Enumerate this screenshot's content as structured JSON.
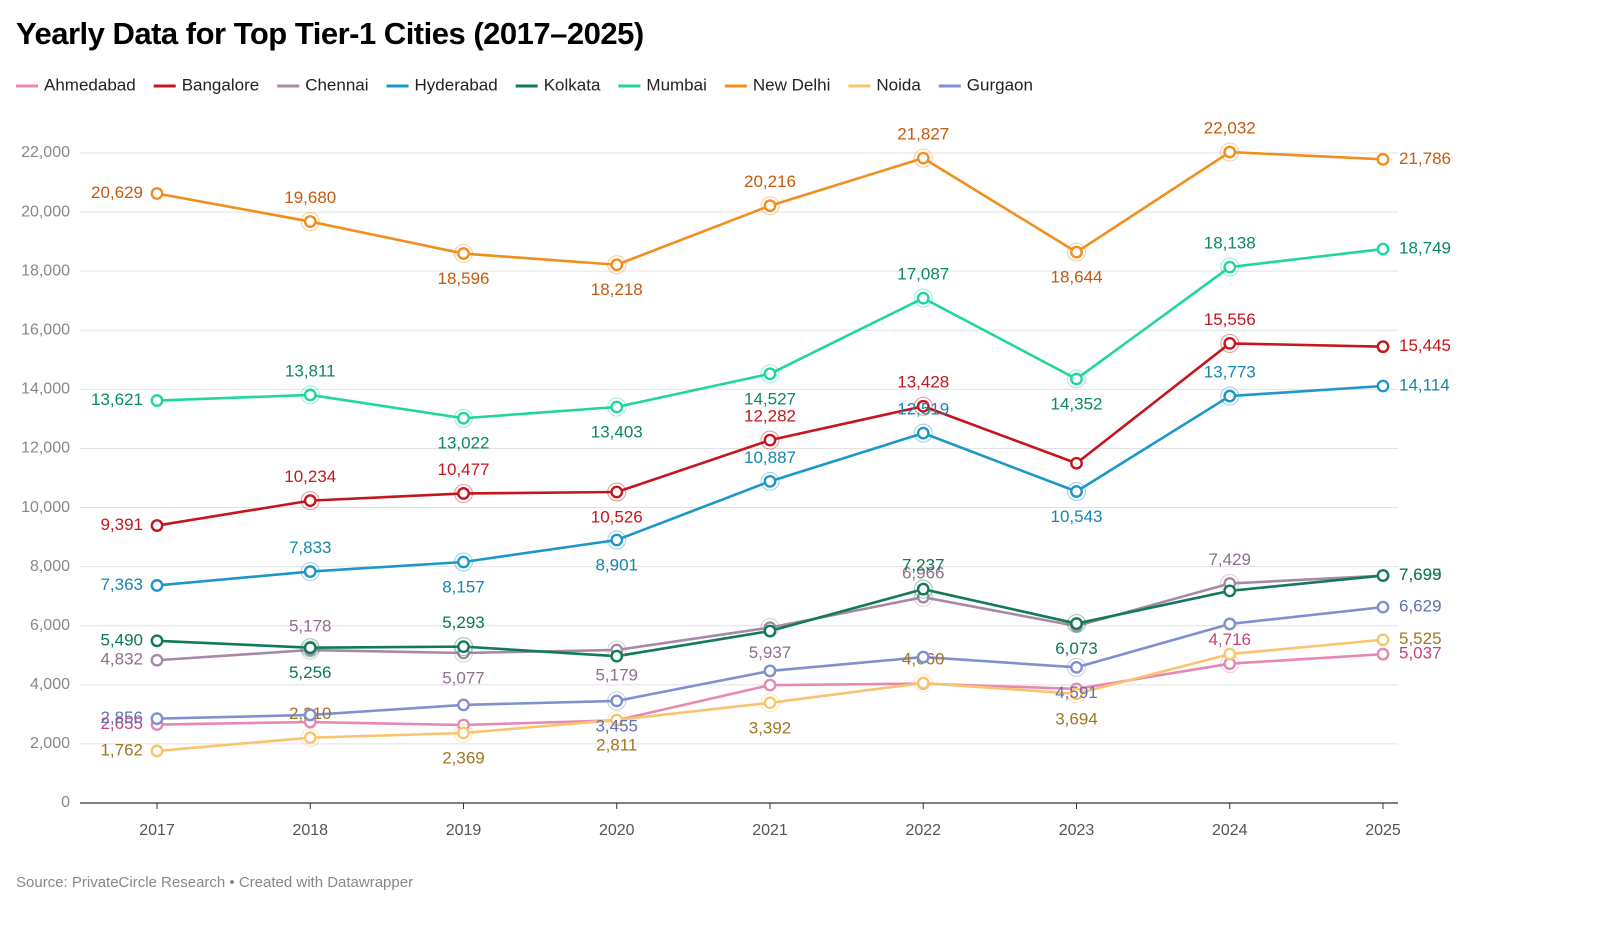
{
  "chart_data": {
    "type": "line",
    "title": "Yearly Data for Top Tier-1 Cities (2017–2025)",
    "source": "Source: PrivateCircle Research • Created with Datawrapper",
    "categories": [
      "2017",
      "2018",
      "2019",
      "2020",
      "2021",
      "2022",
      "2023",
      "2024",
      "2025"
    ],
    "ylim": [
      0,
      22000
    ],
    "yticks": [
      0,
      {
        "value": 2000,
        "label": "2,000"
      },
      {
        "value": 4000,
        "label": "4,000"
      },
      {
        "value": 6000,
        "label": "6,000"
      },
      {
        "value": 8000,
        "label": "8,000"
      },
      {
        "value": 10000,
        "label": "10,000"
      },
      {
        "value": 12000,
        "label": "12,000"
      },
      {
        "value": 14000,
        "label": "14,000"
      },
      {
        "value": 16000,
        "label": "16,000"
      },
      {
        "value": 18000,
        "label": "18,000"
      },
      {
        "value": 20000,
        "label": "20,000"
      },
      {
        "value": 22000,
        "label": "22,000"
      }
    ],
    "grid": true,
    "legend": "top",
    "series": [
      {
        "name": "Ahmedabad",
        "color": "#e887b4",
        "label_color": "#c0447a",
        "values": [
          2655,
          2740,
          2640,
          2800,
          3990,
          4040,
          3860,
          4716,
          5037
        ],
        "value_labels": [
          "2,655",
          null,
          null,
          null,
          null,
          null,
          null,
          "4,716",
          "5,037"
        ]
      },
      {
        "name": "Bangalore",
        "color": "#c4161c",
        "label_color": "#c4161c",
        "values": [
          9391,
          10234,
          10477,
          10526,
          12282,
          13428,
          11500,
          15556,
          15445
        ],
        "value_labels": [
          "9,391",
          "10,234",
          "10,477",
          "10,526",
          "12,282",
          "13,428",
          null,
          "15,556",
          "15,445"
        ]
      },
      {
        "name": "Chennai",
        "color": "#a58aa5",
        "label_color": "#8e6f8e",
        "values": [
          4832,
          5178,
          5077,
          5179,
          5937,
          6966,
          5990,
          7429,
          7695
        ],
        "value_labels": [
          "4,832",
          "5,178",
          "5,077",
          "5,179",
          "5,937",
          "6,966",
          null,
          "7,429",
          "7,695"
        ]
      },
      {
        "name": "Hyderabad",
        "color": "#1b98c8",
        "label_color": "#1487b0",
        "values": [
          7363,
          7833,
          8157,
          8901,
          10887,
          12519,
          10543,
          13773,
          14114
        ],
        "value_labels": [
          "7,363",
          "7,833",
          "8,157",
          "8,901",
          "10,887",
          "12,519",
          "10,543",
          "13,773",
          "14,114"
        ]
      },
      {
        "name": "Kolkata",
        "color": "#117a56",
        "label_color": "#0b7a50",
        "values": [
          5490,
          5256,
          5293,
          4970,
          5820,
          7237,
          6073,
          7180,
          7699
        ],
        "value_labels": [
          "5,490",
          "5,256",
          "5,293",
          null,
          null,
          "7,237",
          "6,073",
          null,
          "7,699"
        ]
      },
      {
        "name": "Mumbai",
        "color": "#1fd6a0",
        "label_color": "#0a8a5e",
        "values": [
          13621,
          13811,
          13022,
          13403,
          14527,
          17087,
          14352,
          18138,
          18749
        ],
        "value_labels": [
          "13,621",
          "13,811",
          "13,022",
          "13,403",
          "14,527",
          "17,087",
          "14,352",
          "18,138",
          "18,749"
        ]
      },
      {
        "name": "New Delhi",
        "color": "#f28e1c",
        "label_color": "#c65a0c",
        "values": [
          20629,
          19680,
          18596,
          18218,
          20216,
          21827,
          18644,
          22032,
          21786
        ],
        "value_labels": [
          "20,629",
          "19,680",
          "18,596",
          "18,218",
          "20,216",
          "21,827",
          "18,644",
          "22,032",
          "21,786"
        ]
      },
      {
        "name": "Noida",
        "color": "#f9c46e",
        "label_color": "#a07720",
        "values": [
          1762,
          2210,
          2369,
          2811,
          3392,
          4060,
          3694,
          5040,
          5525
        ],
        "value_labels": [
          "1,762",
          "2,210",
          "2,369",
          "2,811",
          "3,392",
          "4,060",
          "3,694",
          null,
          "5,525"
        ]
      },
      {
        "name": "Gurgaon",
        "color": "#7f8fd0",
        "label_color": "#6570b0",
        "values": [
          2856,
          2980,
          3320,
          3455,
          4470,
          4940,
          4591,
          6060,
          6629
        ],
        "value_labels": [
          "2,856",
          null,
          null,
          "3,455",
          null,
          null,
          "4,591",
          null,
          "6,629"
        ]
      }
    ]
  }
}
